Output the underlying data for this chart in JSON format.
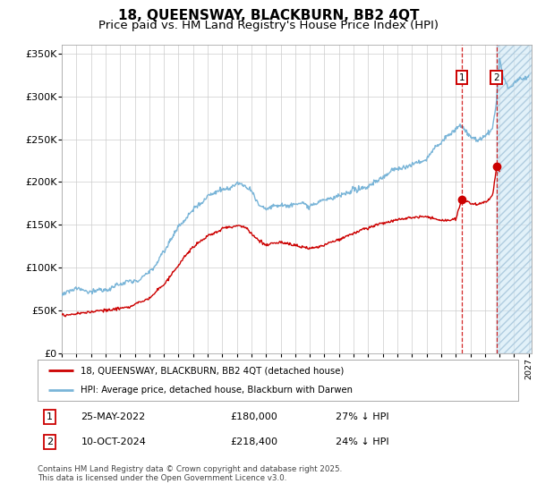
{
  "title": "18, QUEENSWAY, BLACKBURN, BB2 4QT",
  "subtitle": "Price paid vs. HM Land Registry's House Price Index (HPI)",
  "ylim": [
    0,
    360000
  ],
  "yticks": [
    0,
    50000,
    100000,
    150000,
    200000,
    250000,
    300000,
    350000
  ],
  "ytick_labels": [
    "£0",
    "£50K",
    "£100K",
    "£150K",
    "£200K",
    "£250K",
    "£300K",
    "£350K"
  ],
  "hpi_color": "#7ab5d8",
  "price_color": "#cc0000",
  "marker1_year": 2022.4,
  "marker1_price": 180000,
  "marker2_year": 2024.79,
  "marker2_price": 218400,
  "legend_line1": "18, QUEENSWAY, BLACKBURN, BB2 4QT (detached house)",
  "legend_line2": "HPI: Average price, detached house, Blackburn with Darwen",
  "table_row1": [
    "1",
    "25-MAY-2022",
    "£180,000",
    "27% ↓ HPI"
  ],
  "table_row2": [
    "2",
    "10-OCT-2024",
    "£218,400",
    "24% ↓ HPI"
  ],
  "footer": "Contains HM Land Registry data © Crown copyright and database right 2025.\nThis data is licensed under the Open Government Licence v3.0.",
  "future_shade_start": 2024.79,
  "future_shade_end": 2027.2,
  "xmin": 1995,
  "xmax": 2027.2,
  "bg_color": "#ffffff",
  "grid_color": "#cccccc",
  "title_fontsize": 11,
  "subtitle_fontsize": 9.5
}
